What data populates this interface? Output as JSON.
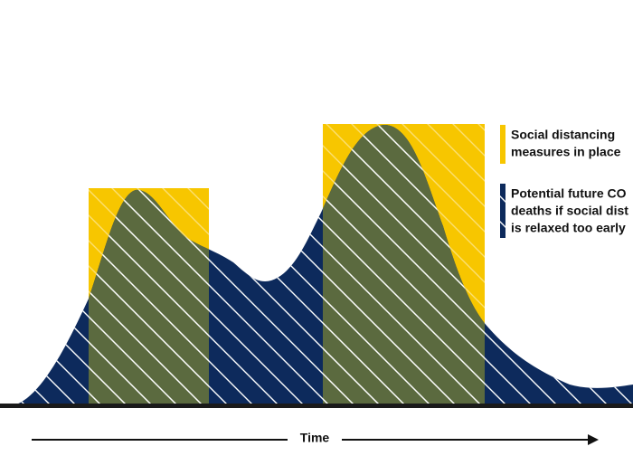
{
  "legend": [
    {
      "lines": [
        "Social distancing",
        "measures in place"
      ]
    },
    {
      "lines": [
        "Potential future CO",
        "deaths if social dist",
        "is relaxed too early"
      ]
    }
  ],
  "axis": {
    "label": "Time"
  }
}
